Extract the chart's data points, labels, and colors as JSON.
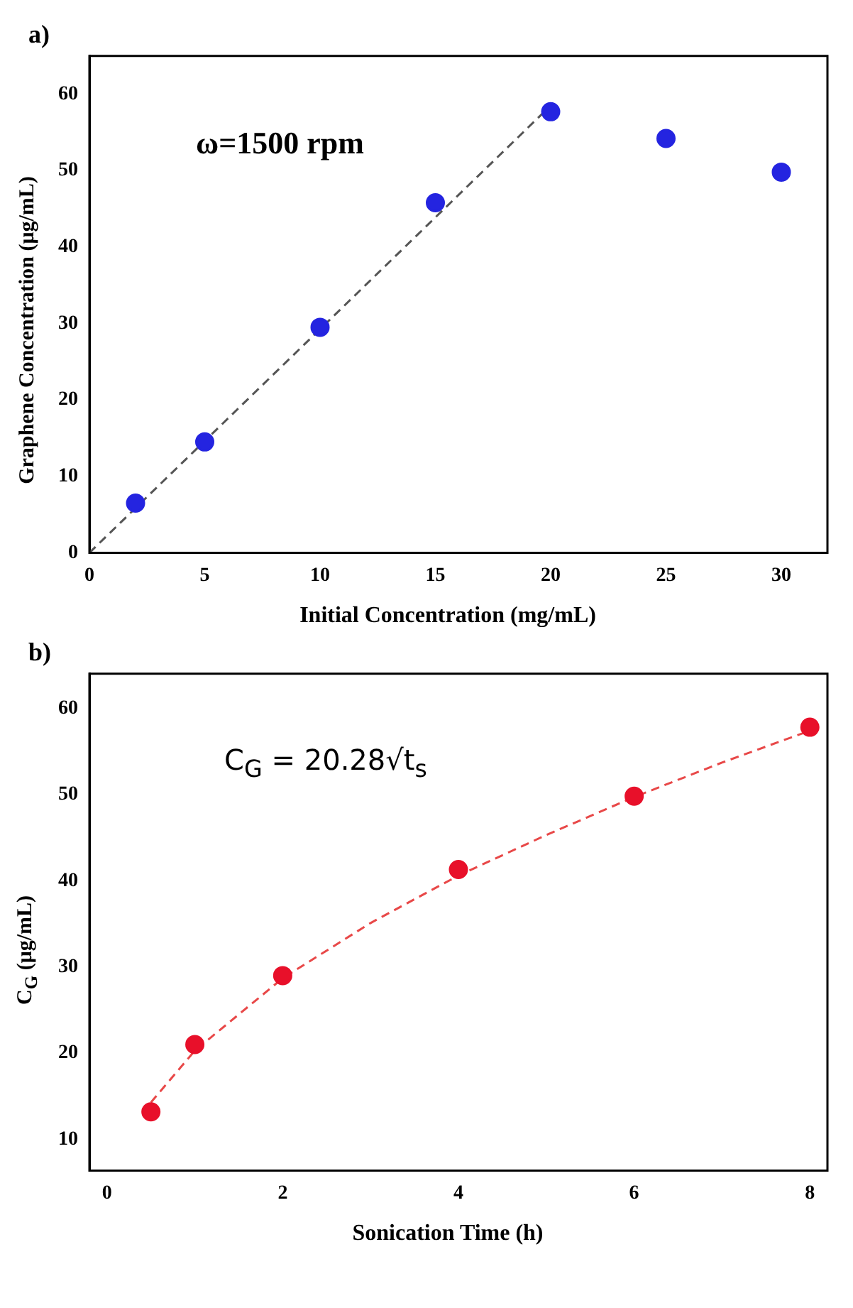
{
  "chart_data": [
    {
      "type": "scatter",
      "title": "a)",
      "xlabel": "Initial Concentration (mg/mL)",
      "ylabel": "Graphene Concentration (μg/mL)",
      "xlim": [
        0,
        32
      ],
      "ylim": [
        0,
        65
      ],
      "xticks": [
        0,
        5,
        10,
        15,
        20,
        25,
        30
      ],
      "yticks": [
        0,
        10,
        20,
        30,
        40,
        50,
        60
      ],
      "grid": false,
      "annotations": [
        "ω=1500 rpm"
      ],
      "series": [
        {
          "color": "#2424e0",
          "marker": "circle",
          "x": [
            2,
            5,
            10,
            15,
            20,
            25,
            30
          ],
          "values": [
            6.5,
            14.5,
            29.5,
            45.8,
            57.7,
            54.2,
            49.8
          ]
        },
        {
          "type": "line",
          "color": "#555555",
          "marker": "none",
          "line_style": "dashed",
          "x": [
            0,
            20
          ],
          "values": [
            0,
            58.5
          ]
        }
      ]
    },
    {
      "type": "scatter",
      "title": "b)",
      "xlabel": "Sonication Time (h)",
      "ylabel": "C$_{G}$ (μg/mL)",
      "xlim": [
        -0.2,
        8.2
      ],
      "ylim": [
        6.4,
        64
      ],
      "xticks": [
        0,
        2,
        4,
        6,
        8
      ],
      "yticks": [
        10,
        20,
        30,
        40,
        50,
        60
      ],
      "grid": false,
      "annotations": [
        "C$_{G}$ = 20.28√t$_{s}$"
      ],
      "series": [
        {
          "color": "#e8102a",
          "marker": "circle",
          "x": [
            0.5,
            1,
            2,
            4,
            6,
            8
          ],
          "values": [
            13.2,
            21,
            29,
            41.3,
            49.8,
            57.8
          ]
        },
        {
          "type": "line",
          "color": "#e84848",
          "marker": "none",
          "line_style": "dashed",
          "x": [
            0.5,
            1,
            2,
            3,
            4,
            5,
            6,
            7,
            8
          ],
          "values": [
            14.3,
            20.3,
            28.7,
            35.1,
            40.6,
            45.3,
            49.7,
            53.7,
            57.4
          ]
        }
      ]
    }
  ]
}
